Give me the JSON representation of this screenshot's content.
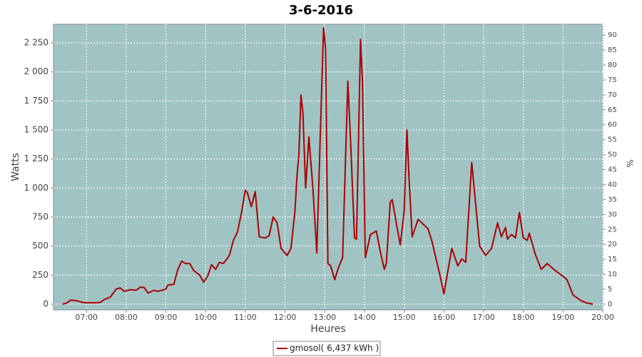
{
  "chart_data": {
    "type": "line",
    "title": "3-6-2016",
    "xlabel": "Heures",
    "ylabel": "Watts",
    "y2label": "%",
    "background": "#a0c4c3",
    "grid": true,
    "legend": "bottom",
    "xlim": [
      6.17,
      20.0
    ],
    "xticks": [
      {
        "value": 7,
        "label": "07:00"
      },
      {
        "value": 8,
        "label": "08:00"
      },
      {
        "value": 9,
        "label": "09:00"
      },
      {
        "value": 10,
        "label": "10:00"
      },
      {
        "value": 11,
        "label": "11:00"
      },
      {
        "value": 12,
        "label": "12:00"
      },
      {
        "value": 13,
        "label": "13:00"
      },
      {
        "value": 14,
        "label": "14:00"
      },
      {
        "value": 15,
        "label": "15:00"
      },
      {
        "value": 16,
        "label": "16:00"
      },
      {
        "value": 17,
        "label": "17:00"
      },
      {
        "value": 18,
        "label": "18:00"
      },
      {
        "value": 19,
        "label": "19:00"
      },
      {
        "value": 20,
        "label": "20:00"
      }
    ],
    "ylim": [
      -49.2,
      2410
    ],
    "yticks": [
      0,
      250,
      500,
      750,
      {
        "value": 1000,
        "label": "1 000"
      },
      {
        "value": 1250,
        "label": "1 250"
      },
      {
        "value": 1500,
        "label": "1 500"
      },
      {
        "value": 1750,
        "label": "1 750"
      },
      {
        "value": 2000,
        "label": "2 000"
      },
      {
        "value": 2250,
        "label": "2 250"
      }
    ],
    "y2lim": [
      -1.91,
      93.6
    ],
    "y2ticks": [
      0,
      5,
      10,
      15,
      20,
      25,
      30,
      35,
      40,
      45,
      50,
      55,
      60,
      65,
      70,
      75,
      80,
      85,
      90
    ],
    "x": [
      6.4,
      6.5,
      6.6,
      6.75,
      6.9,
      7.0,
      7.2,
      7.35,
      7.45,
      7.6,
      7.75,
      7.85,
      7.95,
      8.1,
      8.25,
      8.35,
      8.45,
      8.55,
      8.7,
      8.8,
      9.0,
      9.05,
      9.2,
      9.3,
      9.4,
      9.5,
      9.6,
      9.7,
      9.85,
      9.95,
      10.05,
      10.15,
      10.25,
      10.35,
      10.45,
      10.6,
      10.7,
      10.8,
      10.9,
      11.0,
      11.05,
      11.15,
      11.25,
      11.35,
      11.5,
      11.6,
      11.7,
      11.8,
      11.9,
      12.05,
      12.15,
      12.25,
      12.3,
      12.35,
      12.4,
      12.45,
      12.52,
      12.6,
      12.7,
      12.8,
      12.9,
      12.97,
      13.02,
      13.08,
      13.15,
      13.25,
      13.35,
      13.45,
      13.58,
      13.65,
      13.75,
      13.8,
      13.9,
      13.95,
      14.02,
      14.15,
      14.3,
      14.4,
      14.5,
      14.55,
      14.65,
      14.7,
      14.8,
      14.9,
      15.0,
      15.07,
      15.12,
      15.2,
      15.35,
      15.6,
      15.7,
      15.9,
      16.0,
      16.2,
      16.35,
      16.45,
      16.55,
      16.7,
      16.9,
      17.05,
      17.2,
      17.35,
      17.45,
      17.55,
      17.6,
      17.7,
      17.8,
      17.9,
      18.0,
      18.1,
      18.15,
      18.3,
      18.45,
      18.6,
      18.8,
      19.0,
      19.1,
      19.25,
      19.45,
      19.6,
      19.75
    ],
    "series": [
      {
        "name": "gmosol( 6,437 kWh )",
        "color": "#aa0000",
        "values": [
          0,
          10,
          35,
          30,
          15,
          12,
          12,
          15,
          40,
          60,
          130,
          140,
          110,
          125,
          120,
          145,
          145,
          95,
          120,
          110,
          130,
          165,
          170,
          300,
          370,
          350,
          350,
          290,
          250,
          190,
          240,
          340,
          300,
          360,
          350,
          420,
          550,
          620,
          780,
          980,
          960,
          840,
          970,
          580,
          570,
          590,
          750,
          700,
          480,
          420,
          480,
          800,
          1100,
          1300,
          1800,
          1650,
          1000,
          1440,
          1000,
          440,
          1600,
          2380,
          2200,
          350,
          330,
          210,
          320,
          400,
          1920,
          1400,
          570,
          560,
          2280,
          1900,
          400,
          600,
          630,
          450,
          300,
          350,
          880,
          900,
          700,
          510,
          800,
          1500,
          1100,
          580,
          730,
          650,
          540,
          250,
          90,
          480,
          330,
          390,
          360,
          1220,
          500,
          420,
          480,
          700,
          580,
          660,
          560,
          600,
          570,
          790,
          570,
          550,
          610,
          430,
          300,
          350,
          290,
          240,
          210,
          80,
          30,
          10,
          0
        ]
      }
    ]
  }
}
